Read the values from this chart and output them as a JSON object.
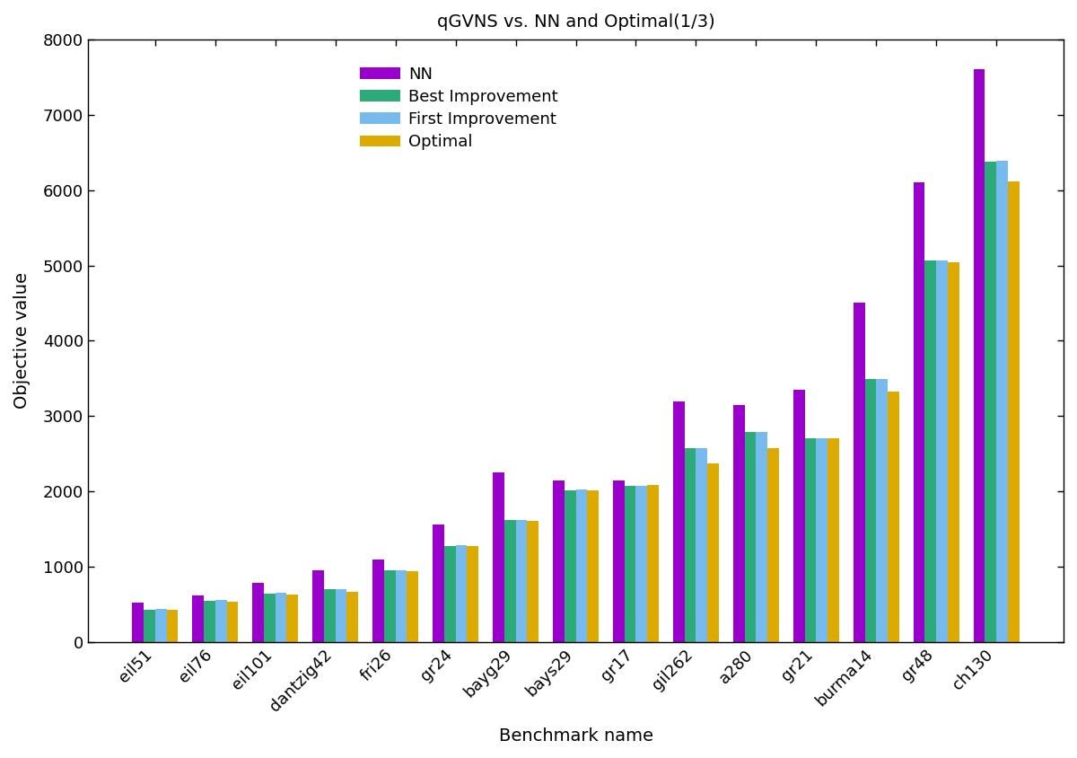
{
  "title": "qGVNS vs. NN and Optimal(1/3)",
  "xlabel": "Benchmark name",
  "ylabel": "Objective value",
  "categories": [
    "eil51",
    "eil76",
    "eil101",
    "dantzig42",
    "fri26",
    "gr24",
    "bayg29",
    "bays29",
    "gr17",
    "gil262",
    "a280",
    "gr21",
    "burma14",
    "gr48",
    "ch130"
  ],
  "NN": [
    520,
    625,
    790,
    960,
    1100,
    1560,
    2250,
    2150,
    2150,
    3200,
    3150,
    3350,
    4510,
    6100,
    7600
  ],
  "BestImprovement": [
    430,
    545,
    650,
    700,
    950,
    1280,
    1620,
    2020,
    2070,
    2580,
    2790,
    2710,
    3490,
    5070,
    6380
  ],
  "FirstImprovement": [
    440,
    555,
    660,
    700,
    960,
    1290,
    1620,
    2030,
    2075,
    2580,
    2790,
    2710,
    3490,
    5070,
    6390
  ],
  "Optimal": [
    426,
    538,
    629,
    667,
    937,
    1272,
    1610,
    2020,
    2085,
    2378,
    2579,
    2707,
    3323,
    5046,
    6110
  ],
  "colors": {
    "NN": "#9900cc",
    "BestImprovement": "#2daa7a",
    "FirstImprovement": "#77bbee",
    "Optimal": "#ddaa00"
  },
  "legend_labels": [
    "NN",
    "Best Improvement",
    "First Improvement",
    "Optimal"
  ],
  "ylim": [
    0,
    8000
  ],
  "yticks": [
    0,
    1000,
    2000,
    3000,
    4000,
    5000,
    6000,
    7000,
    8000
  ],
  "figsize": [
    12.0,
    8.44
  ],
  "dpi": 100,
  "bar_width": 0.19,
  "title_fontsize": 14,
  "label_fontsize": 14,
  "tick_fontsize": 13,
  "legend_fontsize": 13
}
